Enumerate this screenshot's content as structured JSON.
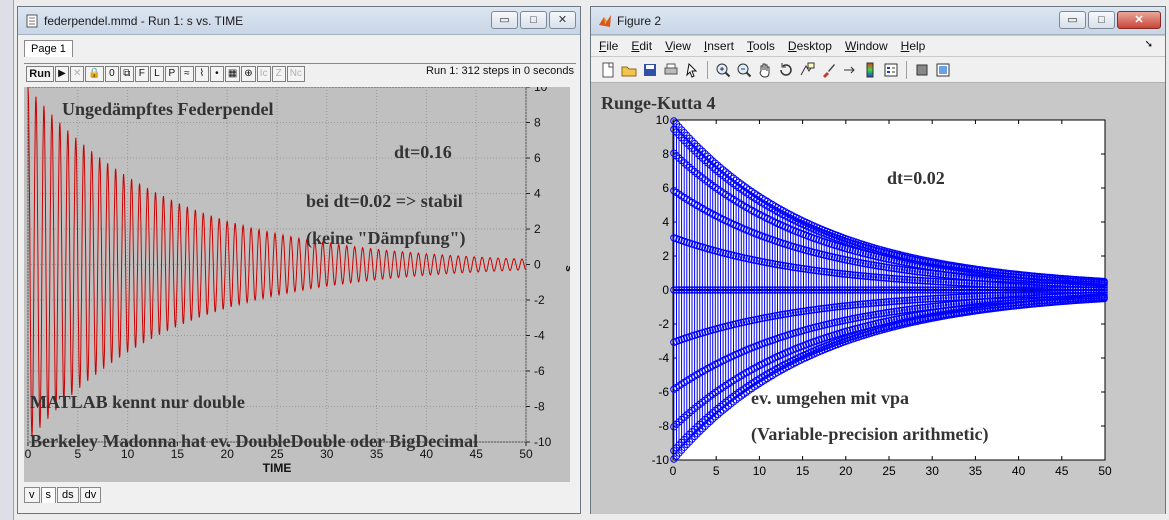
{
  "madonna": {
    "title": "federpendel.mmd - Run 1: s vs. TIME",
    "page_tab": "Page 1",
    "toolbar": [
      "Run",
      "▶",
      "✕",
      "🔒",
      "0",
      "⧉",
      "F",
      "L",
      "P",
      "≈",
      "⌇",
      "•",
      "▦",
      "⊕",
      "Ic",
      "Z",
      "Nc"
    ],
    "run_info": "Run 1: 312 steps in 0 seconds",
    "bottom_tabs": [
      "v",
      "s",
      "ds",
      "dv"
    ],
    "selected_bottom_tab": "s",
    "overlay": {
      "title": "Ungedämpftes Federpendel",
      "dt": "dt=0.16",
      "stable": "bei dt=0.02 => stabil",
      "no_damping": "(keine \"Dämpfung\")",
      "matlab_double": "MATLAB kennt nur double",
      "berkeley": "Berkeley Madonna hat ev. DoubleDouble oder BigDecimal"
    }
  },
  "figure": {
    "title": "Figure 2",
    "menu": [
      "File",
      "Edit",
      "View",
      "Insert",
      "Tools",
      "Desktop",
      "Window",
      "Help"
    ],
    "toolbar_icons": [
      "new-file-icon",
      "open-folder-icon",
      "save-icon",
      "print-icon",
      "pointer-icon",
      "zoom-in-icon",
      "zoom-out-icon",
      "pan-hand-icon",
      "rotate-3d-icon",
      "data-cursor-icon",
      "brush-icon",
      "link-plot-icon",
      "colorbar-icon",
      "legend-icon",
      "hide-plot-tools-icon",
      "show-plot-tools-icon"
    ],
    "overlay": {
      "title": "Runge-Kutta 4",
      "dt": "dt=0.02",
      "vpa": "ev. umgehen mit  vpa",
      "vpa_full": "(Variable-precision arithmetic)"
    }
  },
  "chart_data": [
    {
      "type": "line",
      "title": "",
      "xlabel": "TIME",
      "ylabel": "s",
      "xlim": [
        0,
        50
      ],
      "ylim": [
        -10,
        10
      ],
      "xticks": [
        0,
        5,
        10,
        15,
        20,
        25,
        30,
        35,
        40,
        45,
        50
      ],
      "yticks": [
        -10,
        -8,
        -6,
        -4,
        -2,
        0,
        2,
        4,
        6,
        8,
        10
      ],
      "grid": true,
      "series": [
        {
          "color": "#cc0000",
          "start_amplitude": 10,
          "end_amplitude": 0.3,
          "period": 0.8
        }
      ]
    },
    {
      "type": "scatter",
      "title": "",
      "xlabel": "",
      "ylabel": "",
      "xlim": [
        0,
        50
      ],
      "ylim": [
        -10,
        10
      ],
      "xticks": [
        0,
        5,
        10,
        15,
        20,
        25,
        30,
        35,
        40,
        45,
        50
      ],
      "yticks": [
        -10,
        -8,
        -6,
        -4,
        -2,
        0,
        2,
        4,
        6,
        8,
        10
      ],
      "grid": false,
      "series": [
        {
          "color": "#0000ff",
          "marker": "o",
          "start_amplitude": 10,
          "end_amplitude": 0.5
        }
      ]
    }
  ]
}
